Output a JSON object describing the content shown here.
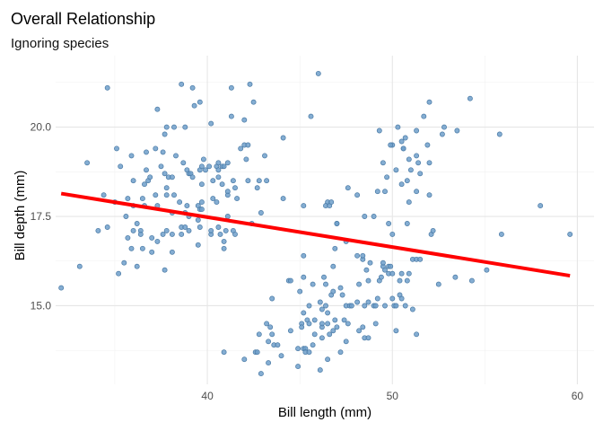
{
  "chart_data": {
    "type": "scatter",
    "title": "Overall Relationship",
    "subtitle": "Ignoring species",
    "xlabel": "Bill length (mm)",
    "ylabel": "Bill depth (mm)",
    "xlim": [
      31.8,
      60.9
    ],
    "ylim": [
      12.8,
      22.0
    ],
    "xticks": [
      40,
      50,
      60
    ],
    "yticks": [
      15.0,
      17.5,
      20.0
    ],
    "ytick_labels": [
      "15.0",
      "17.5",
      "20.0"
    ],
    "grid": true,
    "point_color": "#6f9fca",
    "point_stroke": "#4a7aa5",
    "fit_color": "#ff0000",
    "fit_line": {
      "x": [
        32.1,
        59.6
      ],
      "y": [
        18.14,
        15.84
      ]
    },
    "points": [
      [
        32.1,
        15.5
      ],
      [
        33.1,
        16.1
      ],
      [
        33.5,
        19.0
      ],
      [
        34.1,
        17.1
      ],
      [
        34.4,
        18.1
      ],
      [
        34.6,
        21.1
      ],
      [
        34.6,
        17.2
      ],
      [
        35.0,
        17.9
      ],
      [
        35.1,
        19.4
      ],
      [
        35.2,
        15.9
      ],
      [
        35.3,
        18.9
      ],
      [
        35.5,
        16.2
      ],
      [
        35.6,
        17.5
      ],
      [
        35.7,
        16.9
      ],
      [
        35.7,
        18.0
      ],
      [
        35.9,
        16.6
      ],
      [
        35.9,
        19.2
      ],
      [
        36.0,
        17.1
      ],
      [
        36.0,
        17.8
      ],
      [
        36.0,
        18.5
      ],
      [
        36.2,
        16.1
      ],
      [
        36.2,
        17.3
      ],
      [
        36.4,
        17.1
      ],
      [
        36.4,
        17.0
      ],
      [
        36.5,
        16.6
      ],
      [
        36.5,
        18.0
      ],
      [
        36.6,
        17.8
      ],
      [
        36.6,
        18.4
      ],
      [
        36.7,
        18.8
      ],
      [
        36.7,
        19.3
      ],
      [
        36.8,
        18.5
      ],
      [
        36.9,
        18.6
      ],
      [
        37.0,
        16.5
      ],
      [
        37.0,
        16.9
      ],
      [
        37.2,
        18.1
      ],
      [
        37.2,
        19.4
      ],
      [
        37.3,
        16.8
      ],
      [
        37.3,
        17.8
      ],
      [
        37.3,
        20.5
      ],
      [
        37.5,
        18.9
      ],
      [
        37.6,
        17.0
      ],
      [
        37.6,
        19.3
      ],
      [
        37.7,
        16.0
      ],
      [
        37.7,
        18.7
      ],
      [
        37.7,
        19.8
      ],
      [
        37.8,
        17.1
      ],
      [
        37.8,
        18.1
      ],
      [
        37.8,
        18.3
      ],
      [
        37.8,
        20.0
      ],
      [
        37.9,
        18.6
      ],
      [
        38.1,
        16.5
      ],
      [
        38.1,
        17.0
      ],
      [
        38.1,
        18.6
      ],
      [
        38.1,
        17.6
      ],
      [
        38.2,
        18.1
      ],
      [
        38.2,
        20.0
      ],
      [
        38.3,
        19.2
      ],
      [
        38.5,
        17.9
      ],
      [
        38.6,
        17.0
      ],
      [
        38.6,
        17.2
      ],
      [
        38.6,
        21.2
      ],
      [
        38.7,
        19.0
      ],
      [
        38.8,
        17.2
      ],
      [
        38.8,
        17.6
      ],
      [
        38.8,
        20.0
      ],
      [
        38.9,
        17.8
      ],
      [
        38.9,
        18.8
      ],
      [
        39.0,
        17.1
      ],
      [
        39.0,
        17.5
      ],
      [
        39.0,
        18.7
      ],
      [
        39.1,
        18.7
      ],
      [
        39.2,
        18.6
      ],
      [
        39.2,
        21.1
      ],
      [
        39.3,
        20.6
      ],
      [
        39.5,
        16.7
      ],
      [
        39.5,
        17.4
      ],
      [
        39.5,
        17.8
      ],
      [
        39.6,
        17.2
      ],
      [
        39.6,
        17.7
      ],
      [
        39.6,
        18.8
      ],
      [
        39.6,
        20.7
      ],
      [
        39.7,
        17.7
      ],
      [
        39.7,
        17.9
      ],
      [
        39.7,
        18.4
      ],
      [
        39.7,
        18.9
      ],
      [
        39.8,
        19.1
      ],
      [
        39.9,
        18.8
      ],
      [
        40.1,
        18.9
      ],
      [
        40.2,
        17.0
      ],
      [
        40.2,
        17.1
      ],
      [
        40.2,
        20.1
      ],
      [
        40.3,
        18.0
      ],
      [
        40.3,
        18.5
      ],
      [
        40.5,
        17.9
      ],
      [
        40.5,
        18.9
      ],
      [
        40.6,
        17.2
      ],
      [
        40.6,
        18.6
      ],
      [
        40.6,
        18.8
      ],
      [
        40.6,
        19.0
      ],
      [
        40.7,
        17.0
      ],
      [
        40.8,
        18.4
      ],
      [
        40.8,
        18.9
      ],
      [
        40.9,
        16.6
      ],
      [
        40.9,
        16.8
      ],
      [
        40.9,
        18.9
      ],
      [
        41.0,
        17.1
      ],
      [
        41.1,
        17.5
      ],
      [
        41.1,
        18.1
      ],
      [
        41.1,
        18.2
      ],
      [
        41.1,
        19.0
      ],
      [
        41.3,
        20.3
      ],
      [
        41.3,
        21.1
      ],
      [
        41.4,
        17.1
      ],
      [
        41.4,
        18.5
      ],
      [
        41.5,
        17.0
      ],
      [
        41.5,
        18.3
      ],
      [
        41.6,
        18.0
      ],
      [
        41.8,
        19.4
      ],
      [
        42.0,
        19.5
      ],
      [
        42.0,
        20.2
      ],
      [
        42.1,
        19.1
      ],
      [
        42.2,
        18.5
      ],
      [
        42.2,
        19.5
      ],
      [
        42.3,
        21.2
      ],
      [
        42.4,
        17.3
      ],
      [
        42.5,
        20.7
      ],
      [
        42.7,
        18.3
      ],
      [
        42.8,
        18.5
      ],
      [
        42.9,
        17.6
      ],
      [
        43.1,
        19.2
      ],
      [
        43.2,
        18.5
      ],
      [
        44.1,
        18.0
      ],
      [
        44.1,
        19.7
      ],
      [
        45.2,
        17.8
      ],
      [
        45.6,
        20.3
      ],
      [
        46.0,
        21.5
      ],
      [
        46.5,
        17.9
      ],
      [
        46.9,
        16.6
      ],
      [
        47.0,
        17.3
      ],
      [
        47.5,
        16.8
      ],
      [
        48.1,
        18.1
      ],
      [
        50.0,
        19.5
      ],
      [
        50.6,
        19.4
      ],
      [
        40.9,
        13.7
      ],
      [
        42.0,
        13.5
      ],
      [
        42.6,
        13.7
      ],
      [
        42.7,
        13.7
      ],
      [
        42.8,
        14.2
      ],
      [
        42.9,
        13.1
      ],
      [
        43.2,
        14.5
      ],
      [
        43.3,
        14.0
      ],
      [
        43.3,
        13.4
      ],
      [
        43.4,
        14.4
      ],
      [
        43.5,
        14.2
      ],
      [
        43.5,
        15.2
      ],
      [
        43.6,
        13.9
      ],
      [
        43.8,
        13.9
      ],
      [
        44.0,
        13.6
      ],
      [
        44.4,
        15.7
      ],
      [
        44.5,
        14.3
      ],
      [
        44.5,
        15.7
      ],
      [
        44.9,
        13.8
      ],
      [
        44.9,
        13.3
      ],
      [
        45.0,
        15.4
      ],
      [
        45.1,
        14.5
      ],
      [
        45.1,
        14.4
      ],
      [
        45.2,
        13.8
      ],
      [
        45.2,
        14.8
      ],
      [
        45.2,
        15.8
      ],
      [
        45.2,
        16.4
      ],
      [
        45.3,
        13.8
      ],
      [
        45.3,
        13.7
      ],
      [
        45.4,
        14.6
      ],
      [
        45.5,
        14.5
      ],
      [
        45.5,
        13.7
      ],
      [
        45.5,
        15.0
      ],
      [
        45.7,
        13.9
      ],
      [
        45.7,
        15.6
      ],
      [
        45.8,
        14.6
      ],
      [
        45.8,
        14.2
      ],
      [
        46.1,
        13.2
      ],
      [
        46.1,
        15.1
      ],
      [
        46.2,
        14.1
      ],
      [
        46.2,
        14.4
      ],
      [
        46.2,
        14.5
      ],
      [
        46.2,
        14.9
      ],
      [
        46.3,
        15.8
      ],
      [
        46.4,
        15.0
      ],
      [
        46.4,
        15.6
      ],
      [
        46.5,
        13.5
      ],
      [
        46.5,
        14.5
      ],
      [
        46.5,
        14.8
      ],
      [
        46.6,
        14.2
      ],
      [
        46.7,
        15.3
      ],
      [
        46.8,
        14.3
      ],
      [
        46.8,
        15.4
      ],
      [
        46.8,
        16.1
      ],
      [
        46.9,
        14.6
      ],
      [
        47.0,
        14.4
      ],
      [
        47.2,
        13.7
      ],
      [
        47.2,
        15.5
      ],
      [
        47.3,
        15.3
      ],
      [
        47.4,
        14.6
      ],
      [
        47.5,
        14.0
      ],
      [
        47.5,
        15.0
      ],
      [
        47.6,
        14.5
      ],
      [
        47.7,
        15.0
      ],
      [
        47.8,
        15.0
      ],
      [
        48.1,
        15.1
      ],
      [
        48.2,
        14.3
      ],
      [
        48.2,
        15.6
      ],
      [
        48.4,
        14.4
      ],
      [
        48.4,
        16.3
      ],
      [
        48.5,
        14.1
      ],
      [
        48.5,
        15.0
      ],
      [
        48.6,
        16.0
      ],
      [
        48.7,
        14.1
      ],
      [
        48.7,
        15.1
      ],
      [
        48.7,
        15.7
      ],
      [
        48.8,
        16.2
      ],
      [
        49.0,
        15.0
      ],
      [
        49.1,
        14.5
      ],
      [
        49.1,
        15.0
      ],
      [
        49.2,
        15.2
      ],
      [
        49.3,
        15.7
      ],
      [
        49.4,
        15.8
      ],
      [
        49.5,
        16.1
      ],
      [
        49.5,
        16.2
      ],
      [
        49.6,
        15.0
      ],
      [
        49.6,
        16.0
      ],
      [
        49.8,
        15.9
      ],
      [
        49.8,
        16.1
      ],
      [
        49.9,
        16.1
      ],
      [
        50.0,
        15.2
      ],
      [
        50.0,
        15.9
      ],
      [
        50.1,
        15.0
      ],
      [
        50.2,
        14.3
      ],
      [
        50.2,
        15.0
      ],
      [
        50.4,
        15.3
      ],
      [
        50.4,
        15.7
      ],
      [
        50.5,
        15.2
      ],
      [
        50.5,
        15.9
      ],
      [
        50.7,
        15.0
      ],
      [
        50.8,
        15.7
      ],
      [
        50.8,
        17.3
      ],
      [
        50.9,
        15.9
      ],
      [
        51.1,
        14.9
      ],
      [
        51.1,
        16.3
      ],
      [
        51.3,
        14.2
      ],
      [
        51.3,
        16.3
      ],
      [
        51.5,
        16.3
      ],
      [
        52.1,
        17.0
      ],
      [
        52.2,
        17.1
      ],
      [
        52.5,
        15.6
      ],
      [
        53.4,
        15.8
      ],
      [
        54.3,
        15.7
      ],
      [
        55.1,
        16.0
      ],
      [
        55.9,
        17.0
      ],
      [
        59.6,
        17.0
      ],
      [
        46.4,
        17.8
      ],
      [
        46.6,
        17.8
      ],
      [
        46.7,
        17.9
      ],
      [
        47.0,
        17.3
      ],
      [
        47.6,
        18.3
      ],
      [
        48.1,
        16.4
      ],
      [
        48.4,
        16.4
      ],
      [
        48.5,
        17.5
      ],
      [
        49.0,
        17.5
      ],
      [
        49.2,
        18.2
      ],
      [
        49.3,
        19.9
      ],
      [
        49.5,
        19.0
      ],
      [
        49.6,
        18.2
      ],
      [
        49.7,
        18.6
      ],
      [
        49.8,
        17.3
      ],
      [
        49.9,
        19.5
      ],
      [
        50.0,
        17.0
      ],
      [
        50.2,
        18.8
      ],
      [
        50.3,
        20.0
      ],
      [
        50.5,
        18.4
      ],
      [
        50.5,
        19.6
      ],
      [
        50.6,
        19.4
      ],
      [
        50.7,
        19.7
      ],
      [
        50.8,
        18.5
      ],
      [
        50.9,
        17.9
      ],
      [
        50.9,
        19.1
      ],
      [
        51.0,
        18.8
      ],
      [
        51.3,
        18.2
      ],
      [
        51.3,
        19.2
      ],
      [
        51.3,
        19.9
      ],
      [
        51.4,
        19.0
      ],
      [
        51.5,
        18.7
      ],
      [
        51.7,
        20.3
      ],
      [
        51.9,
        19.5
      ],
      [
        52.0,
        18.1
      ],
      [
        52.0,
        19.0
      ],
      [
        52.0,
        20.7
      ],
      [
        52.7,
        19.8
      ],
      [
        52.8,
        20.0
      ],
      [
        53.5,
        19.9
      ],
      [
        54.2,
        20.8
      ],
      [
        55.8,
        19.8
      ],
      [
        58.0,
        17.8
      ]
    ]
  }
}
